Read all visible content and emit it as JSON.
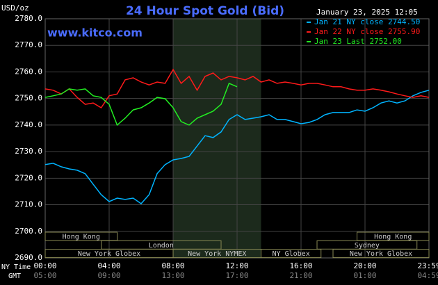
{
  "chart_data": {
    "type": "line",
    "title": "24 Hour Spot Gold (Bid)",
    "y_label": "USD/oz",
    "watermark": "www.kitco.com",
    "timestamp": "January 23, 2025 12:05",
    "x_label": "NY Time",
    "x2_label": "GMT",
    "x": [
      0,
      0.5,
      1,
      1.5,
      2,
      2.5,
      3,
      3.5,
      4,
      4.5,
      5,
      5.5,
      6,
      6.5,
      7,
      7.5,
      8,
      8.5,
      9,
      9.5,
      10,
      10.5,
      11,
      11.5,
      12,
      12.5,
      13,
      13.5,
      14,
      14.5,
      15,
      15.5,
      16,
      16.5,
      17,
      17.5,
      18,
      18.5,
      19,
      19.5,
      20,
      20.5,
      21,
      21.5,
      22,
      22.5,
      23,
      23.5,
      24
    ],
    "series": [
      {
        "name": "Jan 21 NY close 2744.50",
        "color": "#00b4ff",
        "values": [
          2725.1,
          2725.6,
          2724.3,
          2723.5,
          2723.0,
          2721.7,
          2717.7,
          2713.8,
          2711.2,
          2712.5,
          2712.0,
          2712.5,
          2710.4,
          2713.8,
          2721.7,
          2725.1,
          2726.9,
          2727.4,
          2728.2,
          2732.1,
          2736.0,
          2735.3,
          2737.4,
          2742.1,
          2743.9,
          2742.1,
          2742.6,
          2743.1,
          2743.9,
          2742.1,
          2742.1,
          2741.3,
          2740.5,
          2741.0,
          2742.1,
          2743.9,
          2744.7,
          2744.7,
          2744.7,
          2745.7,
          2745.2,
          2746.5,
          2748.3,
          2749.1,
          2748.3,
          2749.1,
          2751.0,
          2752.3,
          2753.1
        ]
      },
      {
        "name": "Jan 22 NY close 2755.90",
        "color": "#ff1a1a",
        "values": [
          2753.6,
          2753.1,
          2751.7,
          2753.6,
          2750.4,
          2747.8,
          2748.3,
          2746.5,
          2751.0,
          2751.7,
          2757.0,
          2757.8,
          2756.2,
          2755.1,
          2756.2,
          2755.7,
          2760.9,
          2755.7,
          2758.3,
          2753.1,
          2758.3,
          2759.6,
          2757.0,
          2758.3,
          2757.8,
          2757.0,
          2758.3,
          2756.2,
          2757.0,
          2755.7,
          2756.2,
          2755.7,
          2755.1,
          2755.7,
          2755.7,
          2755.1,
          2754.4,
          2754.4,
          2753.6,
          2753.1,
          2753.1,
          2753.6,
          2753.1,
          2752.5,
          2751.7,
          2751.0,
          2750.4,
          2751.0,
          2750.4
        ]
      },
      {
        "name": "Jan 23 Last 2752.00",
        "color": "#22ee22",
        "values": [
          2750.4,
          2751.0,
          2751.7,
          2753.6,
          2753.1,
          2753.6,
          2751.0,
          2750.4,
          2747.8,
          2740.0,
          2742.6,
          2745.7,
          2746.5,
          2748.3,
          2750.4,
          2749.9,
          2746.5,
          2741.3,
          2740.0,
          2742.6,
          2743.9,
          2745.2,
          2747.8,
          2755.7,
          2754.4,
          null,
          null,
          null,
          null,
          null,
          null,
          null,
          null,
          null,
          null,
          null,
          null,
          null,
          null,
          null,
          null,
          null,
          null,
          null,
          null,
          null,
          null,
          null,
          null
        ]
      }
    ],
    "xlim": [
      0,
      24
    ],
    "xticks": [
      {
        "value": 0,
        "label": "00:00"
      },
      {
        "value": 4,
        "label": "04:00"
      },
      {
        "value": 8,
        "label": "08:00"
      },
      {
        "value": 12,
        "label": "12:00"
      },
      {
        "value": 16,
        "label": "16:00"
      },
      {
        "value": 20,
        "label": "20:00"
      },
      {
        "value": 24,
        "label": "23:59"
      }
    ],
    "x2ticks": [
      {
        "value": 0,
        "label": "05:00"
      },
      {
        "value": 4,
        "label": "09:00"
      },
      {
        "value": 8,
        "label": "13:00"
      },
      {
        "value": 12,
        "label": "17:00"
      },
      {
        "value": 16,
        "label": "21:00"
      },
      {
        "value": 20,
        "label": "01:00"
      },
      {
        "value": 24,
        "label": "04:59"
      }
    ],
    "ylim": [
      2690,
      2780
    ],
    "yticks": [
      {
        "value": 2690,
        "label": "2690.0"
      },
      {
        "value": 2700,
        "label": "2700.0"
      },
      {
        "value": 2710,
        "label": "2710.0"
      },
      {
        "value": 2720,
        "label": "2720.0"
      },
      {
        "value": 2730,
        "label": "2730.0"
      },
      {
        "value": 2740,
        "label": "2740.0"
      },
      {
        "value": 2750,
        "label": "2750.0"
      },
      {
        "value": 2760,
        "label": "2760.0"
      },
      {
        "value": 2770,
        "label": "2770.0"
      },
      {
        "value": 2780,
        "label": "2780.0"
      }
    ],
    "grid": true,
    "session_rows": [
      [
        {
          "label": "Hong Kong",
          "start": 0,
          "end": 4.5
        },
        {
          "label": "Hong Kong",
          "start": 19.5,
          "end": 24
        }
      ],
      [
        {
          "label": "London",
          "start": 3.5,
          "end": 11
        },
        {
          "label": "Sydney",
          "start": 17,
          "end": 23.25
        }
      ],
      [
        {
          "label": "New York Globex",
          "start": 0,
          "end": 8
        },
        {
          "label": "New York NYMEX",
          "start": 8,
          "end": 13.5,
          "highlight": true
        },
        {
          "label": "NY Globex",
          "start": 13.5,
          "end": 17.25
        },
        {
          "label": "New York Globex",
          "start": 18,
          "end": 24
        }
      ]
    ]
  }
}
